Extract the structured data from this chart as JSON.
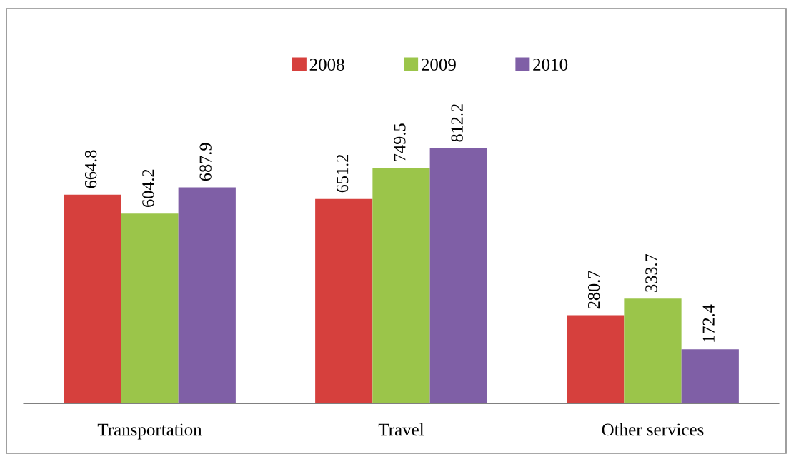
{
  "chart_data": {
    "type": "bar",
    "categories": [
      "Transportation",
      "Travel",
      "Other services"
    ],
    "series": [
      {
        "name": "2008",
        "color": "#d6403d",
        "values": [
          664.8,
          651.2,
          280.7
        ]
      },
      {
        "name": "2009",
        "color": "#9bc54a",
        "values": [
          604.2,
          749.5,
          333.7
        ]
      },
      {
        "name": "2010",
        "color": "#7f5fa6",
        "values": [
          687.9,
          812.2,
          172.4
        ]
      }
    ],
    "data_labels": true,
    "legend": "top",
    "grid": false,
    "tick_labels": "x"
  }
}
